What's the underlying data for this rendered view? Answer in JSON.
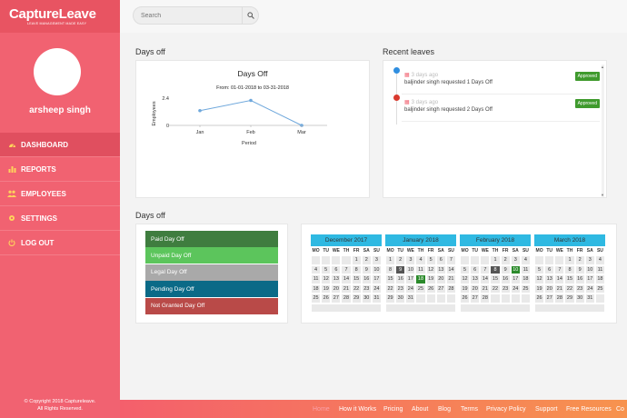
{
  "brand": {
    "name": "CaptureLeave",
    "tagline": "LEAVE MANAGEMENT MADE EASY"
  },
  "user": {
    "name": "arsheep singh"
  },
  "sidebar": {
    "items": [
      {
        "label": "DASHBOARD",
        "icon": "dashboard-icon",
        "active": true
      },
      {
        "label": "REPORTS",
        "icon": "bar-chart-icon",
        "active": false
      },
      {
        "label": "EMPLOYEES",
        "icon": "users-icon",
        "active": false
      },
      {
        "label": "SETTINGS",
        "icon": "gear-icon",
        "active": false
      },
      {
        "label": "LOG OUT",
        "icon": "power-icon",
        "active": false
      }
    ],
    "copyright_line1": "© Copyright 2018 Captureleave.",
    "copyright_line2": "All Rights Reserved."
  },
  "search": {
    "placeholder": "Search",
    "value": ""
  },
  "days_off_chart_section": {
    "title": "Days off"
  },
  "recent_leaves": {
    "title": "Recent leaves",
    "items": [
      {
        "time": "3 days ago",
        "text": "baljinder singh requested 1 Days Off",
        "status": "Approved"
      },
      {
        "time": "3 days ago",
        "text": "baljinder singh requested 2 Days Off",
        "status": "Approved"
      }
    ]
  },
  "days_off_calendar_section": {
    "title": "Days off"
  },
  "legend": [
    {
      "label": "Paid Day Off",
      "color": "#3f7d3f"
    },
    {
      "label": "Unpaid Day Off",
      "color": "#5cc55c"
    },
    {
      "label": "Legal Day Off",
      "color": "#a9a9a9"
    },
    {
      "label": "Pending Day Off",
      "color": "#0b6a87"
    },
    {
      "label": "Not Granted Day Off",
      "color": "#b94a48"
    }
  ],
  "chart_data": {
    "type": "line",
    "title": "Days Off",
    "subtitle": "From: 01-01-2018 to 03-31-2018",
    "xlabel": "Period",
    "ylabel": "Employees",
    "categories": [
      "Jan",
      "Feb",
      "Mar"
    ],
    "values": [
      1.3,
      2.2,
      0
    ],
    "yticks": [
      "2.4",
      "0"
    ],
    "ylim": [
      0,
      2.4
    ],
    "line_color": "#6fa8dc",
    "grid": false
  },
  "calendars": [
    {
      "month": "December 2017",
      "dow": [
        "MO",
        "TU",
        "WE",
        "TH",
        "FR",
        "SA",
        "SU"
      ],
      "weeks": [
        [
          "",
          "",
          "",
          "",
          "1",
          "2",
          "3"
        ],
        [
          "4",
          "5",
          "6",
          "7",
          "8",
          "9",
          "10"
        ],
        [
          "11",
          "12",
          "13",
          "14",
          "15",
          "16",
          "17"
        ],
        [
          "18",
          "19",
          "20",
          "21",
          "22",
          "23",
          "24"
        ],
        [
          "25",
          "26",
          "27",
          "28",
          "29",
          "30",
          "31"
        ]
      ],
      "highlights": {}
    },
    {
      "month": "January 2018",
      "dow": [
        "MO",
        "TU",
        "WE",
        "TH",
        "FR",
        "SA",
        "SU"
      ],
      "weeks": [
        [
          "1",
          "2",
          "3",
          "4",
          "5",
          "6",
          "7"
        ],
        [
          "8",
          "9",
          "10",
          "11",
          "12",
          "13",
          "14"
        ],
        [
          "15",
          "16",
          "17",
          "18",
          "19",
          "20",
          "21"
        ],
        [
          "22",
          "23",
          "24",
          "25",
          "26",
          "27",
          "28"
        ],
        [
          "29",
          "30",
          "31",
          "",
          "",
          "",
          ""
        ]
      ],
      "highlights": {
        "9": "gray",
        "18": "green"
      }
    },
    {
      "month": "February 2018",
      "dow": [
        "MO",
        "TU",
        "WE",
        "TH",
        "FR",
        "SA",
        "SU"
      ],
      "weeks": [
        [
          "",
          "",
          "",
          "1",
          "2",
          "3",
          "4"
        ],
        [
          "5",
          "6",
          "7",
          "8",
          "9",
          "10",
          "11"
        ],
        [
          "12",
          "13",
          "14",
          "15",
          "16",
          "17",
          "18"
        ],
        [
          "19",
          "20",
          "21",
          "22",
          "23",
          "24",
          "25"
        ],
        [
          "26",
          "27",
          "28",
          "",
          "",
          "",
          ""
        ]
      ],
      "highlights": {
        "8": "gray",
        "10": "green"
      }
    },
    {
      "month": "March 2018",
      "dow": [
        "MO",
        "TU",
        "WE",
        "TH",
        "FR",
        "SA",
        "SU"
      ],
      "weeks": [
        [
          "",
          "",
          "",
          "1",
          "2",
          "3",
          "4"
        ],
        [
          "5",
          "6",
          "7",
          "8",
          "9",
          "10",
          "11"
        ],
        [
          "12",
          "13",
          "14",
          "15",
          "16",
          "17",
          "18"
        ],
        [
          "19",
          "20",
          "21",
          "22",
          "23",
          "24",
          "25"
        ],
        [
          "26",
          "27",
          "28",
          "29",
          "30",
          "31",
          ""
        ]
      ],
      "highlights": {}
    }
  ],
  "footer": {
    "links": [
      "Home",
      "How it Works",
      "Pricing",
      "About",
      "Blog",
      "Terms",
      "Privacy Policy",
      "Support",
      "Free Resources",
      "Co"
    ]
  }
}
